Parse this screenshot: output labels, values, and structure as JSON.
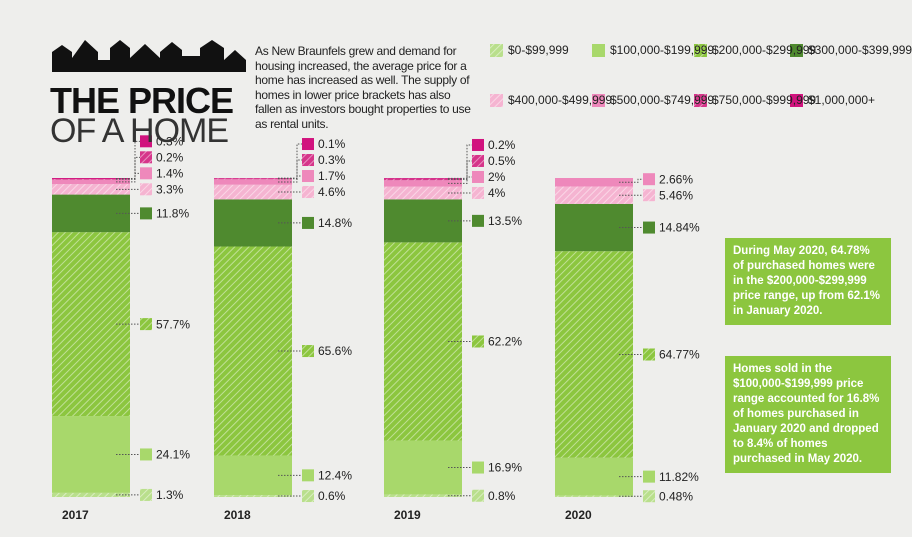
{
  "chart_data": {
    "type": "stacked_bar",
    "title": [
      "THE PRICE",
      "OF A HOME"
    ],
    "intro": "As New Braunfels grew and demand for housing increased, the average price for a home has increased as well. The supply of homes in lower price brackets has also fallen as investors bought properties to use as rental units.",
    "categories": [
      "2017",
      "2018",
      "2019",
      "2020"
    ],
    "series": [
      {
        "name": "$0-$99,999",
        "color": "#b9df8c",
        "hatch": true,
        "values": [
          1.3,
          0.6,
          0.8,
          0.48
        ],
        "value_labels": [
          "1.3%",
          "0.6%",
          "0.8%",
          "0.48%"
        ]
      },
      {
        "name": "$100,000-$199,999",
        "color": "#a8d86b",
        "hatch": false,
        "values": [
          24.1,
          12.4,
          16.9,
          11.82
        ],
        "value_labels": [
          "24.1%",
          "12.4%",
          "16.9%",
          "11.82%"
        ]
      },
      {
        "name": "$200,000-$299,999",
        "color": "#8cc63f",
        "hatch": true,
        "values": [
          57.7,
          65.6,
          62.2,
          64.77
        ],
        "value_labels": [
          "57.7%",
          "65.6%",
          "62.2%",
          "64.77%"
        ]
      },
      {
        "name": "$300,000-$399,999",
        "color": "#4f8a2f",
        "hatch": false,
        "values": [
          11.8,
          14.8,
          13.5,
          14.84
        ],
        "value_labels": [
          "11.8%",
          "14.8%",
          "13.5%",
          "14.84%"
        ]
      },
      {
        "name": "$400,000-$499,999",
        "color": "#f5b4d1",
        "hatch": true,
        "values": [
          3.3,
          4.6,
          4,
          5.46
        ],
        "value_labels": [
          "3.3%",
          "4.6%",
          "4%",
          "5.46%"
        ]
      },
      {
        "name": "$500,000-$749,999",
        "color": "#ee88bb",
        "hatch": false,
        "values": [
          1.4,
          1.7,
          2,
          2.66
        ],
        "value_labels": [
          "1.4%",
          "1.7%",
          "2%",
          "2.66%"
        ]
      },
      {
        "name": "$750,000-$999,999",
        "color": "#d6358a",
        "hatch": true,
        "values": [
          0.2,
          0.3,
          0.5,
          null
        ],
        "value_labels": [
          "0.2%",
          "0.3%",
          "0.5%",
          null
        ]
      },
      {
        "name": "$1,000,000+",
        "color": "#d1137e",
        "hatch": false,
        "values": [
          0.3,
          0.1,
          0.2,
          null
        ],
        "value_labels": [
          "0.3%",
          "0.1%",
          "0.2%",
          null
        ]
      }
    ],
    "annotations": [
      "During May 2020, 64.78% of purchased homes were in the $200,000-$299,999 price range, up from 62.1% in January 2020.",
      "Homes sold in the $100,000-$199,999 price range accounted for 16.8% of homes purchased in January 2020 and dropped to 8.4% of homes purchased in May 2020."
    ]
  }
}
